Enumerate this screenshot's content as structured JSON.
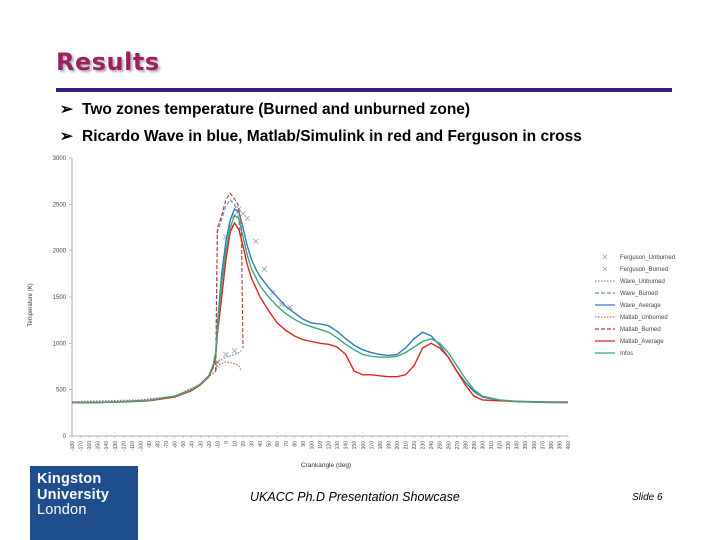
{
  "slide": {
    "title": "Results",
    "bullets": [
      "Two zones temperature (Burned and unburned zone)",
      "Ricardo Wave in blue, Matlab/Simulink in red and Ferguson in cross"
    ],
    "footer": "UKACC Ph.D Presentation Showcase",
    "slide_number": "Slide 6",
    "logo": [
      "Kingston",
      "University",
      "London"
    ],
    "colors": {
      "title": "#9e1f63",
      "rule": "#3a1a7a",
      "logo_bg": "#1e4f8c"
    }
  },
  "chart_data": {
    "type": "line",
    "xlabel": "Crankangle (deg)",
    "ylabel": "Temperature (K)",
    "xlim": [
      -180,
      400
    ],
    "ylim": [
      0,
      3000
    ],
    "yticks": [
      0,
      500,
      1000,
      1500,
      2000,
      2500,
      3000
    ],
    "xticks": [
      -180,
      -170,
      -160,
      -150,
      -140,
      -130,
      -120,
      -110,
      -100,
      -90,
      -80,
      -70,
      -60,
      -50,
      -40,
      -30,
      -20,
      -10,
      0,
      10,
      20,
      30,
      40,
      50,
      60,
      70,
      80,
      90,
      100,
      110,
      120,
      130,
      140,
      150,
      160,
      170,
      180,
      190,
      200,
      210,
      220,
      230,
      240,
      250,
      260,
      270,
      280,
      290,
      300,
      310,
      320,
      330,
      340,
      350,
      360,
      370,
      380,
      390,
      400
    ],
    "legend_position": "right",
    "series": [
      {
        "name": "Ferguson_Unburned",
        "color": "#9aa0a8",
        "style": "cross",
        "x": [
          -10,
          0,
          10
        ],
        "y": [
          800,
          880,
          920
        ]
      },
      {
        "name": "Ferguson_Burned",
        "color": "#9aa0a8",
        "style": "cross",
        "x": [
          0,
          5,
          10,
          15,
          20,
          25,
          35,
          45,
          55,
          65,
          75
        ],
        "y": [
          2150,
          2250,
          2380,
          2450,
          2400,
          2350,
          2100,
          1800,
          1550,
          1420,
          1390
        ]
      },
      {
        "name": "Wave_Unburned",
        "color": "#5b8ec9",
        "style": "dotted",
        "x": [
          -180,
          -100,
          -60,
          -30,
          -20,
          -12,
          -10,
          0,
          10,
          15,
          18
        ],
        "y": [
          370,
          390,
          430,
          560,
          640,
          700,
          800,
          850,
          880,
          900,
          920
        ]
      },
      {
        "name": "Wave_Burned",
        "color": "#5b8ec9",
        "style": "dashed",
        "x": [
          -12,
          -10,
          0,
          5,
          10,
          14,
          18
        ],
        "y": [
          700,
          2200,
          2480,
          2550,
          2500,
          2400,
          2100
        ]
      },
      {
        "name": "Wave_Average",
        "color": "#2e7bbf",
        "style": "solid",
        "x": [
          -180,
          -150,
          -120,
          -90,
          -60,
          -40,
          -30,
          -20,
          -15,
          -12,
          -10,
          -5,
          0,
          5,
          10,
          15,
          20,
          25,
          30,
          35,
          40,
          50,
          60,
          70,
          80,
          90,
          100,
          110,
          120,
          130,
          140,
          150,
          160,
          170,
          180,
          190,
          200,
          210,
          220,
          230,
          240,
          250,
          260,
          270,
          280,
          290,
          300,
          320,
          340,
          360,
          380,
          400
        ],
        "y": [
          360,
          362,
          370,
          385,
          430,
          500,
          560,
          650,
          760,
          900,
          1200,
          1750,
          2100,
          2330,
          2450,
          2420,
          2250,
          2050,
          1900,
          1800,
          1720,
          1600,
          1500,
          1400,
          1330,
          1260,
          1220,
          1210,
          1190,
          1130,
          1050,
          980,
          930,
          900,
          880,
          870,
          880,
          950,
          1050,
          1120,
          1080,
          980,
          850,
          700,
          580,
          480,
          420,
          385,
          370,
          365,
          362,
          360
        ]
      },
      {
        "name": "Matlab_Unburned",
        "color": "#d45a5a",
        "style": "dotted",
        "x": [
          -180,
          -100,
          -60,
          -30,
          -20,
          -12,
          -10,
          0,
          10,
          15,
          18
        ],
        "y": [
          370,
          390,
          430,
          560,
          640,
          700,
          760,
          800,
          780,
          760,
          700
        ]
      },
      {
        "name": "Matlab_Burned",
        "color": "#c0392b",
        "style": "dashed",
        "x": [
          -12,
          -10,
          -5,
          0,
          5,
          10,
          14,
          18,
          20
        ],
        "y": [
          700,
          2250,
          2380,
          2550,
          2620,
          2560,
          2500,
          2300,
          950
        ]
      },
      {
        "name": "Matlab_Average",
        "color": "#e0241b",
        "style": "solid",
        "x": [
          -180,
          -150,
          -120,
          -90,
          -60,
          -40,
          -30,
          -20,
          -15,
          -12,
          -10,
          -5,
          0,
          5,
          10,
          15,
          20,
          25,
          30,
          40,
          50,
          60,
          70,
          80,
          90,
          100,
          110,
          120,
          130,
          140,
          150,
          160,
          170,
          180,
          190,
          200,
          210,
          220,
          230,
          240,
          250,
          260,
          270,
          280,
          290,
          300,
          320,
          340,
          360,
          380,
          400
        ],
        "y": [
          360,
          362,
          368,
          380,
          420,
          490,
          550,
          640,
          740,
          860,
          1100,
          1500,
          1900,
          2200,
          2300,
          2230,
          2050,
          1850,
          1700,
          1500,
          1350,
          1220,
          1140,
          1080,
          1040,
          1020,
          1000,
          990,
          960,
          880,
          700,
          660,
          660,
          650,
          640,
          640,
          660,
          760,
          950,
          1000,
          950,
          850,
          700,
          550,
          430,
          390,
          380,
          375,
          370,
          368,
          366
        ]
      },
      {
        "name": "Infos",
        "color": "#3aa87a",
        "style": "solid",
        "x": [
          -180,
          -150,
          -120,
          -90,
          -60,
          -40,
          -30,
          -20,
          -15,
          -12,
          -10,
          -5,
          0,
          5,
          10,
          15,
          20,
          25,
          30,
          40,
          50,
          60,
          70,
          80,
          90,
          100,
          110,
          120,
          130,
          140,
          150,
          160,
          170,
          180,
          190,
          200,
          210,
          220,
          230,
          240,
          250,
          260,
          270,
          280,
          290,
          300,
          320,
          340,
          360,
          380,
          400
        ],
        "y": [
          360,
          362,
          370,
          385,
          430,
          500,
          560,
          650,
          760,
          900,
          1150,
          1650,
          2000,
          2250,
          2380,
          2350,
          2150,
          1950,
          1800,
          1620,
          1500,
          1400,
          1320,
          1260,
          1210,
          1180,
          1150,
          1120,
          1060,
          990,
          930,
          880,
          860,
          850,
          850,
          860,
          900,
          960,
          1020,
          1050,
          1000,
          900,
          760,
          620,
          500,
          430,
          390,
          375,
          368,
          364,
          360
        ]
      }
    ]
  }
}
